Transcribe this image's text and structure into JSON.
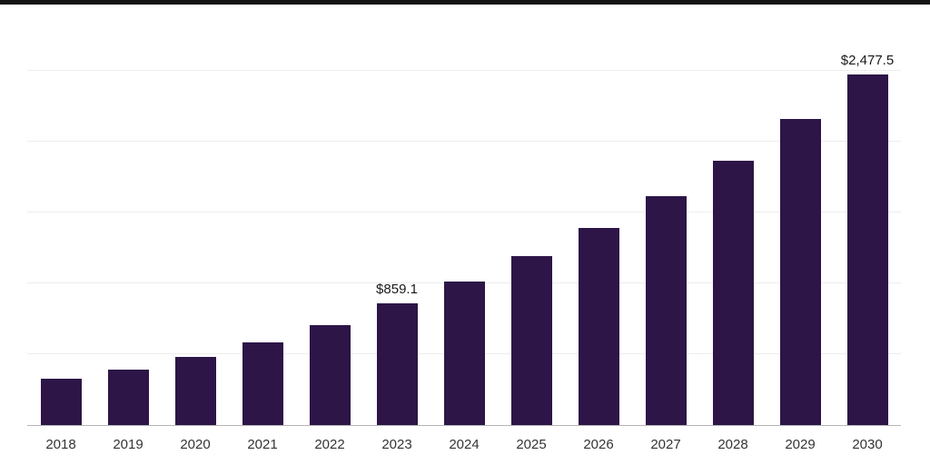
{
  "page": {
    "background": "#ffffff",
    "top_strip_color": "#141414"
  },
  "chart_data": {
    "type": "bar",
    "title": "",
    "xlabel": "",
    "ylabel": "",
    "categories": [
      "2018",
      "2019",
      "2020",
      "2021",
      "2022",
      "2023",
      "2024",
      "2025",
      "2026",
      "2027",
      "2028",
      "2029",
      "2030"
    ],
    "values": [
      330,
      393,
      483,
      586,
      708,
      859.1,
      1010,
      1190,
      1390,
      1615,
      1866,
      2162,
      2477.5
    ],
    "data_labels": {
      "2023": "$859.1",
      "2030": "$2,477.5"
    },
    "bar_color": "#2d1547",
    "ylim": [
      0,
      2500
    ],
    "gridline_step": 500,
    "grid": true,
    "legend_position": "none",
    "gridline_color": "#ededed",
    "axis_line_color": "#b5b5b5",
    "label_color": "#343434"
  }
}
